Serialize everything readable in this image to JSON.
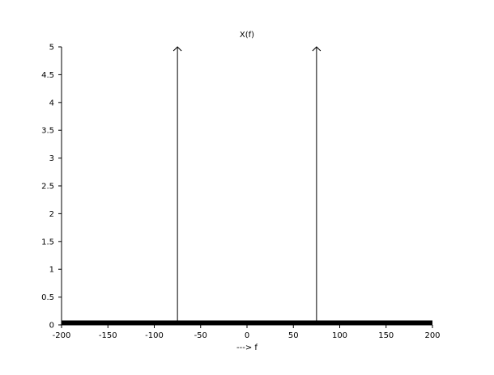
{
  "chart_data": {
    "type": "line",
    "title": "X(f)",
    "xlabel": "--->  f",
    "ylabel": "",
    "xlim": [
      -200,
      200
    ],
    "ylim": [
      0,
      5
    ],
    "x_ticks": [
      -200,
      -150,
      -100,
      -50,
      0,
      50,
      100,
      150,
      200
    ],
    "x_tick_labels": [
      "-200",
      "-150",
      "-100",
      "-50",
      "0",
      "50",
      "100",
      "150",
      "200"
    ],
    "y_ticks": [
      0,
      0.5,
      1,
      1.5,
      2,
      2.5,
      3,
      3.5,
      4,
      4.5,
      5
    ],
    "y_tick_labels": [
      "0",
      "0.5",
      "1",
      "1.5",
      "2",
      "2.5",
      "3",
      "3.5",
      "4",
      "4.5",
      "5"
    ],
    "grid": false,
    "legend": "none",
    "series": [
      {
        "kind": "baseline",
        "x": [
          -200,
          200
        ],
        "y": [
          0,
          0
        ]
      },
      {
        "kind": "impulse",
        "x": [
          -75,
          75
        ],
        "y": [
          5,
          5
        ]
      }
    ],
    "colors": {
      "line": "#000000",
      "axis": "#000000",
      "background": "#ffffff"
    }
  }
}
